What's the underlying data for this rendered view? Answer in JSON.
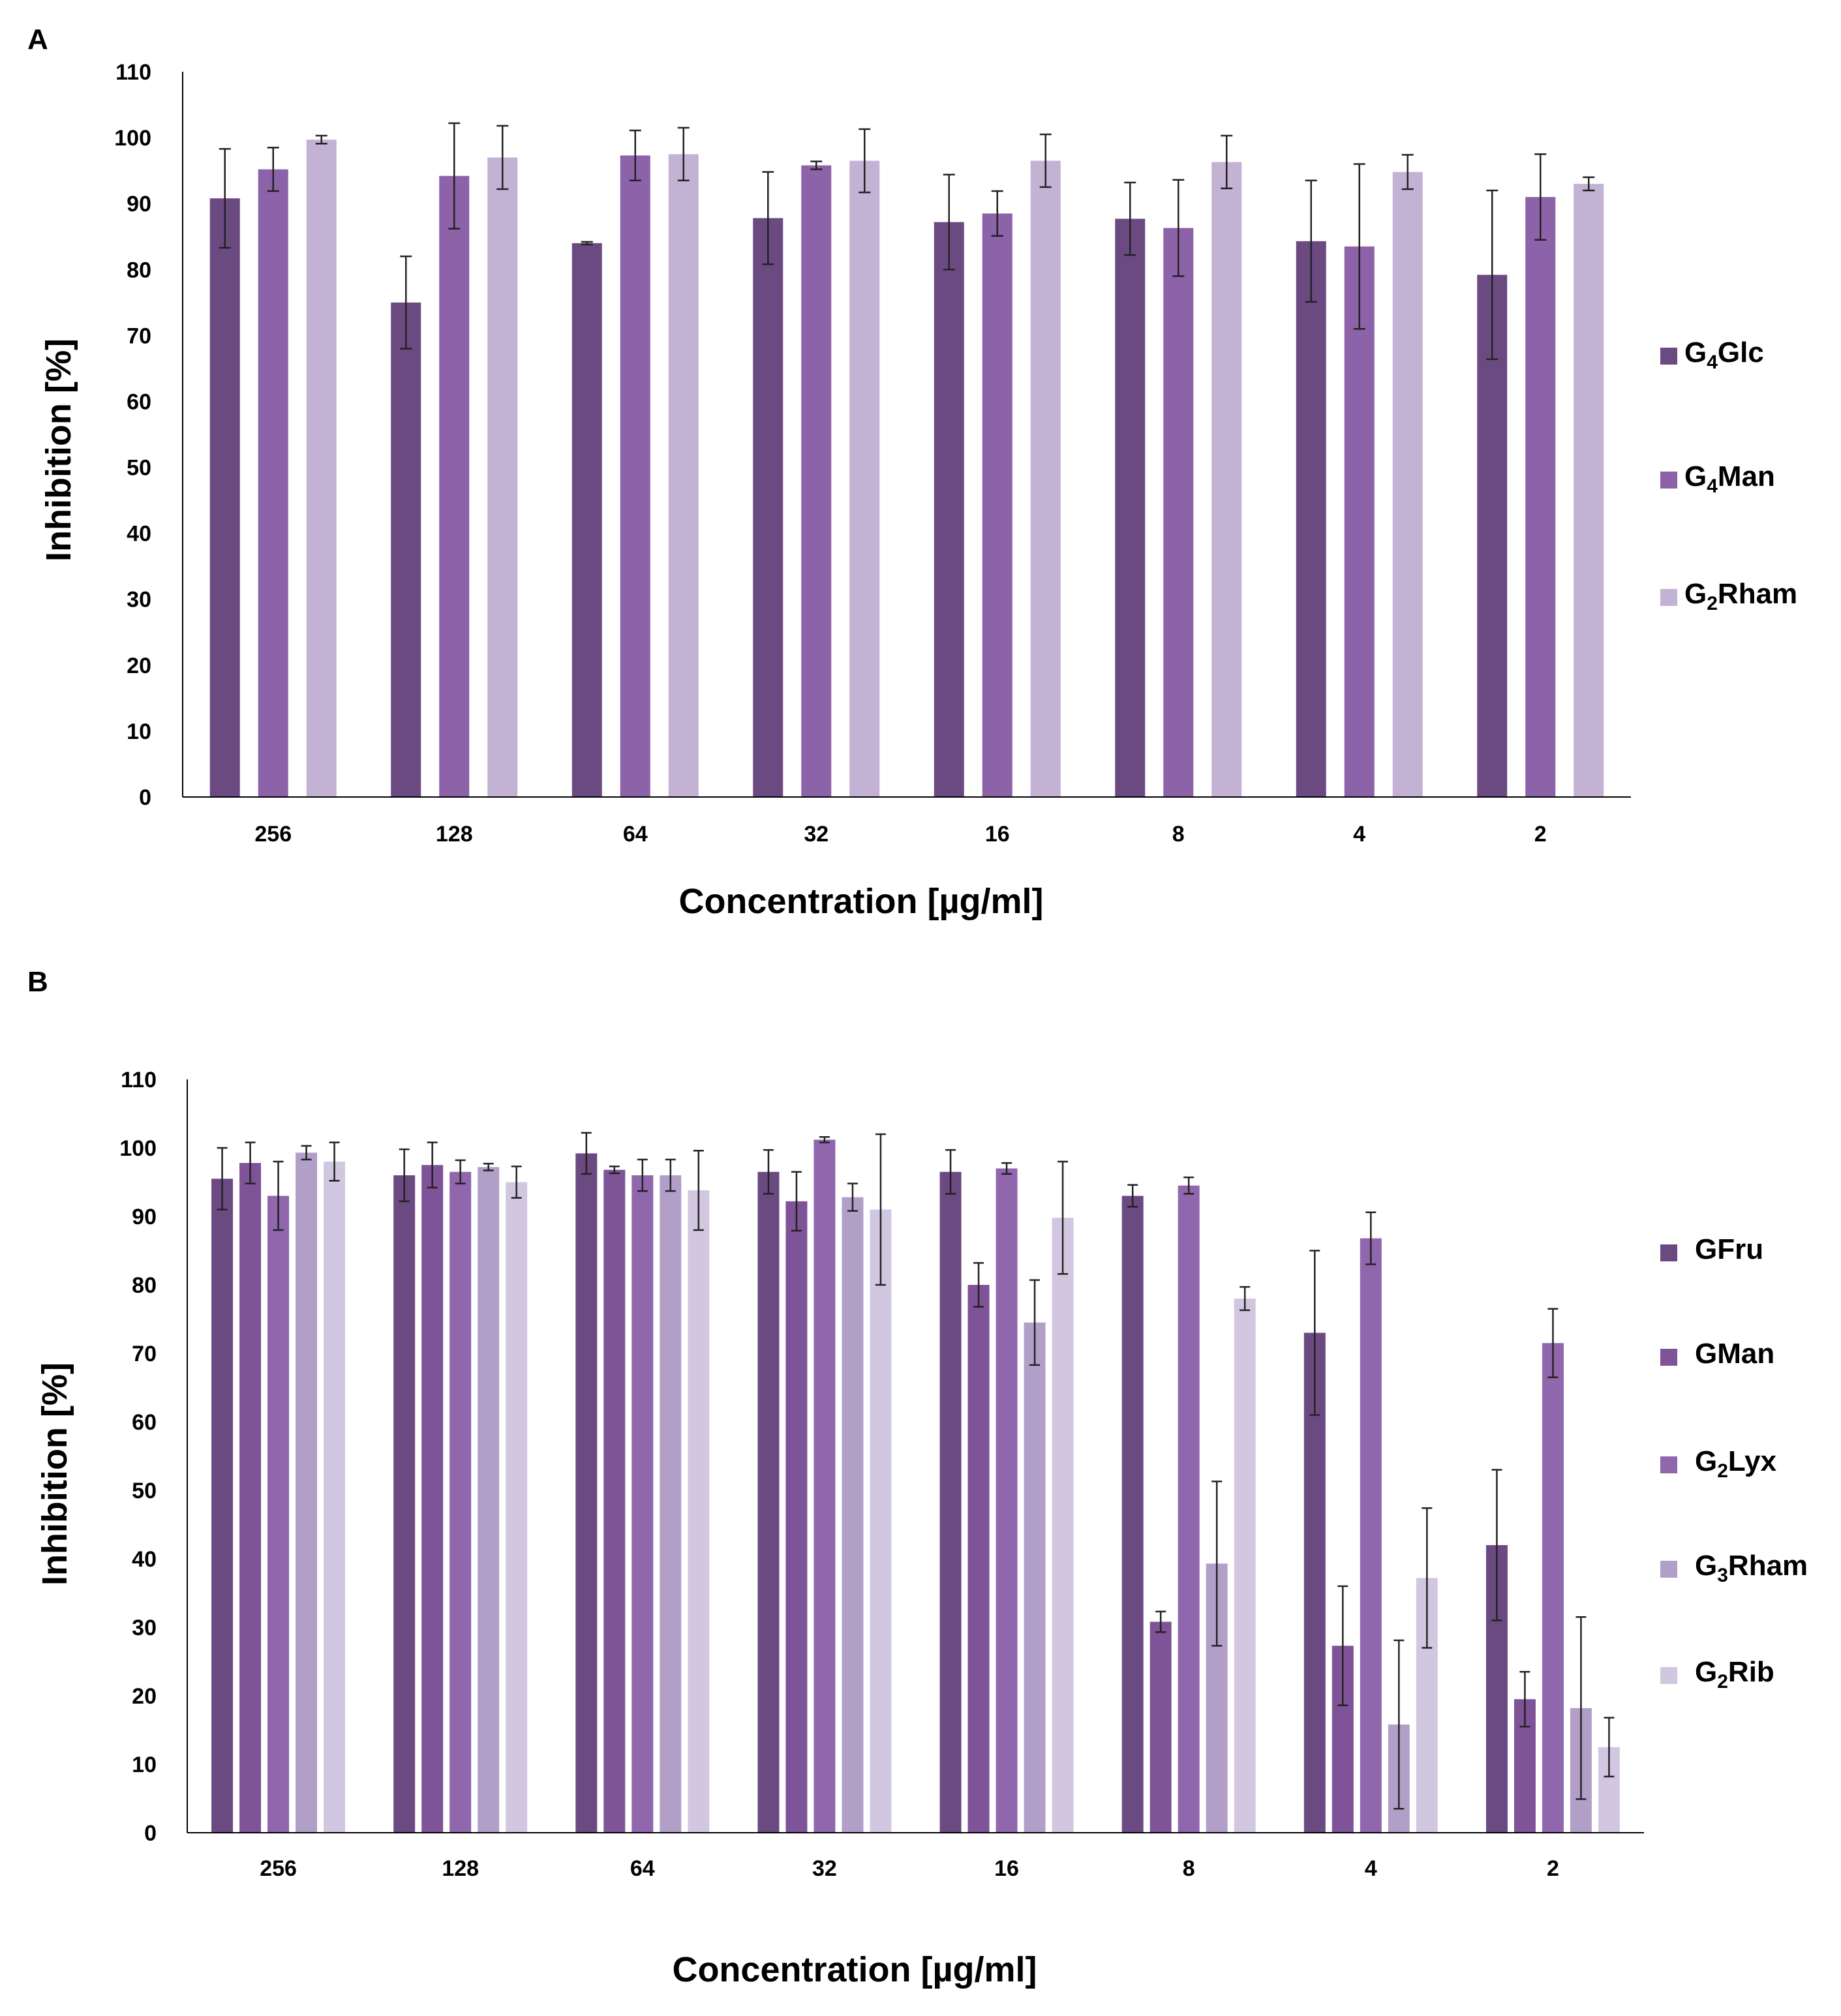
{
  "chart_data": [
    {
      "panel": "A",
      "type": "bar",
      "xlabel": "Concentration [µg/ml]",
      "ylabel": "Inhibition [%]",
      "ylim": [
        0,
        110
      ],
      "ytick_step": 10,
      "grid": false,
      "legend_position": "right",
      "categories": [
        "256",
        "128",
        "64",
        "32",
        "16",
        "8",
        "4",
        "2"
      ],
      "series": [
        {
          "name": "G4Glc",
          "label_main": "G",
          "label_sub": "4",
          "label_rest": "Glc",
          "color": "#6b4a82",
          "values": [
            90.8,
            75.0,
            84.0,
            87.8,
            87.2,
            87.7,
            84.3,
            79.2
          ],
          "errors": [
            7.5,
            7.0,
            0.2,
            7.0,
            7.2,
            5.5,
            9.2,
            12.8
          ]
        },
        {
          "name": "G4Man",
          "label_main": "G",
          "label_sub": "4",
          "label_rest": "Man",
          "color": "#8c62a8",
          "values": [
            95.2,
            94.2,
            97.3,
            95.8,
            88.5,
            86.3,
            83.5,
            91.0
          ],
          "errors": [
            3.3,
            8.0,
            3.8,
            0.6,
            3.4,
            7.3,
            12.5,
            6.5
          ]
        },
        {
          "name": "G2Rham",
          "label_main": "G",
          "label_sub": "2",
          "label_rest": "Rham",
          "color": "#c3b2d3",
          "values": [
            99.7,
            97.0,
            97.5,
            96.5,
            96.5,
            96.3,
            94.8,
            93.0
          ],
          "errors": [
            0.6,
            4.8,
            4.0,
            4.8,
            4.0,
            4.0,
            2.6,
            1.0
          ]
        }
      ]
    },
    {
      "panel": "B",
      "type": "bar",
      "xlabel": "Concentration [µg/ml]",
      "ylabel": "Inhibition  [%]",
      "ylim": [
        0,
        110
      ],
      "ytick_step": 10,
      "grid": false,
      "legend_position": "right",
      "categories": [
        "256",
        "128",
        "64",
        "32",
        "16",
        "8",
        "4",
        "2"
      ],
      "series": [
        {
          "name": "GFru",
          "label_main": "GFru",
          "label_sub": "",
          "label_rest": "",
          "color": "#6b4a82",
          "values": [
            95.5,
            96.0,
            99.2,
            96.5,
            96.5,
            93.0,
            73.0,
            42.0
          ],
          "errors": [
            4.5,
            3.8,
            3.0,
            3.2,
            3.2,
            1.6,
            12.0,
            11.0
          ]
        },
        {
          "name": "GMan",
          "label_main": "GMan",
          "label_sub": "",
          "label_rest": "",
          "color": "#7e5397",
          "values": [
            97.8,
            97.5,
            96.8,
            92.2,
            80.0,
            30.8,
            27.3,
            19.5
          ],
          "errors": [
            3.0,
            3.3,
            0.5,
            4.3,
            3.2,
            1.5,
            8.7,
            4.0
          ]
        },
        {
          "name": "G2Lyx",
          "label_main": "G",
          "label_sub": "2",
          "label_rest": "Lyx",
          "color": "#9066ad",
          "values": [
            93.0,
            96.5,
            96.0,
            101.2,
            97.0,
            94.5,
            86.8,
            71.5
          ],
          "errors": [
            5.0,
            1.7,
            2.3,
            0.4,
            0.8,
            1.2,
            3.8,
            5.0
          ]
        },
        {
          "name": "G3Rham",
          "label_main": "G",
          "label_sub": "3",
          "label_rest": "Rham",
          "color": "#b19fc8",
          "values": [
            99.3,
            97.2,
            96.0,
            92.8,
            74.5,
            39.3,
            15.8,
            18.2
          ],
          "errors": [
            1.0,
            0.5,
            2.3,
            2.0,
            6.2,
            12.0,
            12.3,
            13.3
          ]
        },
        {
          "name": "G2Rib",
          "label_main": "G",
          "label_sub": "2",
          "label_rest": "Rib",
          "color": "#d2c7e0",
          "values": [
            98.0,
            95.0,
            93.8,
            91.0,
            89.8,
            78.0,
            37.2,
            12.5
          ],
          "errors": [
            2.8,
            2.3,
            5.8,
            11.0,
            8.2,
            1.7,
            10.2,
            4.3
          ]
        }
      ]
    }
  ]
}
